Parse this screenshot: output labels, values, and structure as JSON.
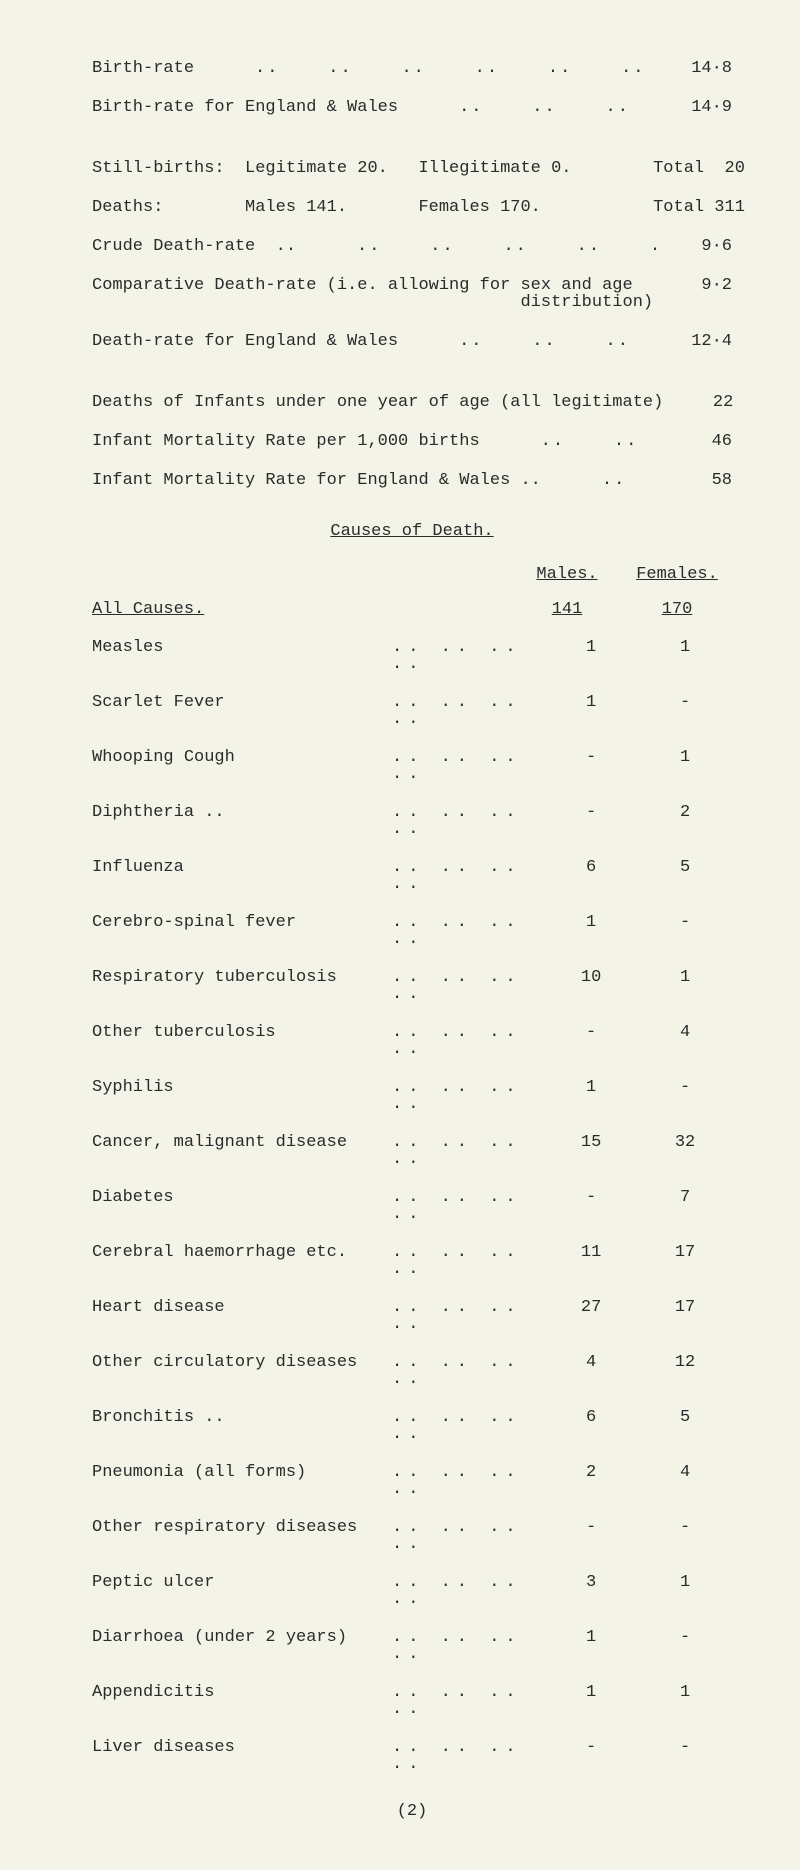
{
  "top_stats": [
    {
      "label": "Birth-rate",
      "dots": "..    ..    ..    ..    ..    ..    ..",
      "value": "14·8"
    },
    {
      "label": "Birth-rate for England & Wales",
      "dots": "..    ..    ..    ..",
      "value": "14·9"
    }
  ],
  "stillbirths_line": "Still-births:  Legitimate 20.   Illegitimate 0.        Total  20",
  "deaths_line": "Deaths:        Males 141.       Females 170.           Total 311",
  "more_stats": [
    {
      "label": "Crude Death-rate  ..",
      "dots": "..    ..    ..    ..    ..    ..",
      "value": "9·6"
    },
    {
      "label": "Comparative Death-rate (i.e. allowing for sex and age\n                                          distribution)",
      "value": "9·2"
    },
    {
      "label": "Death-rate for England & Wales",
      "dots": "..    ..    ..    ..",
      "value": "12·4"
    }
  ],
  "infant_stats": [
    {
      "label": "Deaths of Infants under one year of age (all legitimate)",
      "value": "22"
    },
    {
      "label": "Infant Mortality Rate per 1,000 births",
      "dots": "..    ..    ..",
      "value": "46"
    },
    {
      "label": "Infant Mortality Rate for England & Wales ..",
      "dots": "..    ..",
      "value": "58"
    }
  ],
  "causes_heading": "Causes of Death.",
  "col_males": "Males.",
  "col_females": "Females.",
  "all_causes_label": "All Causes.",
  "all_causes_m": "141",
  "all_causes_f": "170",
  "causes": [
    {
      "label": "Measles",
      "m": "1",
      "f": "1"
    },
    {
      "label": "Scarlet Fever",
      "m": "1",
      "f": "-"
    },
    {
      "label": "Whooping Cough",
      "m": "-",
      "f": "1"
    },
    {
      "label": "Diphtheria  ..",
      "m": "-",
      "f": "2"
    },
    {
      "label": "Influenza",
      "m": "6",
      "f": "5"
    },
    {
      "label": "Cerebro-spinal fever",
      "m": "1",
      "f": "-"
    },
    {
      "label": "Respiratory tuberculosis",
      "m": "10",
      "f": "1"
    },
    {
      "label": "Other tuberculosis",
      "m": "-",
      "f": "4"
    },
    {
      "label": "Syphilis",
      "m": "1",
      "f": "-"
    },
    {
      "label": "Cancer, malignant disease",
      "m": "15",
      "f": "32"
    },
    {
      "label": "Diabetes",
      "m": "-",
      "f": "7"
    },
    {
      "label": "Cerebral haemorrhage etc.",
      "m": "11",
      "f": "17"
    },
    {
      "label": "Heart disease",
      "m": "27",
      "f": "17"
    },
    {
      "label": "Other circulatory diseases",
      "m": "4",
      "f": "12"
    },
    {
      "label": "Bronchitis  ..",
      "m": "6",
      "f": "5"
    },
    {
      "label": "Pneumonia (all forms)",
      "m": "2",
      "f": "4"
    },
    {
      "label": "Other respiratory diseases",
      "m": "-",
      "f": "-"
    },
    {
      "label": "Peptic ulcer",
      "m": "3",
      "f": "1"
    },
    {
      "label": "Diarrhoea (under 2 years)",
      "m": "1",
      "f": "-"
    },
    {
      "label": "Appendicitis",
      "m": "1",
      "f": "1"
    },
    {
      "label": "Liver diseases",
      "m": "-",
      "f": "-"
    }
  ],
  "page_number": "(2)"
}
